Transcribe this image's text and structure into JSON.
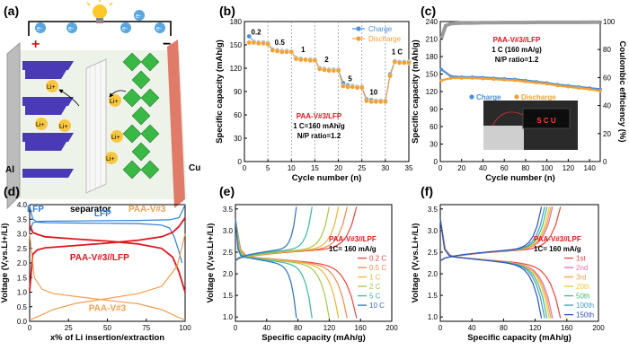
{
  "panel_labels": [
    "(a)",
    "(b)",
    "(c)",
    "(d)",
    "(e)",
    "(f)"
  ],
  "schematic": {
    "electrons": [
      "e-",
      "e-",
      "e-",
      "e-",
      "e-"
    ],
    "ions": [
      "Li+",
      "Li+",
      "Li+",
      "Li+",
      "Li+",
      "Li+"
    ],
    "plus_sign": "+",
    "minus_sign": "−",
    "cathode_label": "LFP",
    "separator_label": "separator",
    "anode_label": "PAA-V#3",
    "al_label": "Al",
    "cu_label": "Cu"
  },
  "colors": {
    "charge": "#4a90d9",
    "discharge": "#f5a033",
    "lfp_blue": "#2e7fd6",
    "full_red": "#e0151d",
    "anode_orange": "#f0a050",
    "cathode_purple": "#4a3ab5",
    "anode_green": "#3ab845",
    "cu_red": "#e07b6a",
    "ce_gray": "#9a9a9a"
  },
  "chart_data": [
    {
      "id": "b",
      "type": "scatter",
      "xlabel": "Cycle number (n)",
      "ylabel": "Specific capacity (mAh/g)",
      "xlim": [
        0,
        35
      ],
      "ylim": [
        0,
        180
      ],
      "xticks": [
        "0",
        "5",
        "10",
        "15",
        "20",
        "25",
        "30",
        "35"
      ],
      "yticks": [
        "0",
        "30",
        "60",
        "90",
        "120",
        "150",
        "180"
      ],
      "legend": [
        "Charge",
        "Discharge"
      ],
      "rate_labels": [
        {
          "text": "0.2",
          "x": 2.5,
          "y": 163
        },
        {
          "text": "0.5",
          "x": 7.5,
          "y": 150
        },
        {
          "text": "1",
          "x": 12.5,
          "y": 141
        },
        {
          "text": "2",
          "x": 17.5,
          "y": 128
        },
        {
          "text": "5",
          "x": 22.5,
          "y": 103
        },
        {
          "text": "10",
          "x": 27.5,
          "y": 86
        },
        {
          "text": "1 C",
          "x": 32.5,
          "y": 138
        }
      ],
      "vlines": [
        5,
        10,
        15,
        20,
        25,
        30
      ],
      "annotation": [
        "PAA-V#3/LFP",
        "1 C=160 mAh/g",
        "N/P ratio=1.2"
      ],
      "series": [
        {
          "name": "Charge",
          "x": [
            1,
            2,
            3,
            4,
            5,
            6,
            7,
            8,
            9,
            10,
            11,
            12,
            13,
            14,
            15,
            16,
            17,
            18,
            19,
            20,
            21,
            22,
            23,
            24,
            25,
            26,
            27,
            28,
            29,
            30,
            31,
            32,
            33,
            34,
            35
          ],
          "values": [
            161,
            154,
            153,
            153,
            152,
            144,
            143,
            142,
            142,
            141,
            133,
            132,
            131,
            131,
            131,
            120,
            119,
            118,
            118,
            118,
            101,
            98,
            97,
            96,
            96,
            80,
            79,
            78,
            78,
            78,
            112,
            129,
            128,
            128,
            128
          ]
        },
        {
          "name": "Discharge",
          "x": [
            1,
            2,
            3,
            4,
            5,
            6,
            7,
            8,
            9,
            10,
            11,
            12,
            13,
            14,
            15,
            16,
            17,
            18,
            19,
            20,
            21,
            22,
            23,
            24,
            25,
            26,
            27,
            28,
            29,
            30,
            31,
            32,
            33,
            34,
            35
          ],
          "values": [
            153,
            153,
            152,
            152,
            151,
            143,
            142,
            141,
            141,
            141,
            132,
            131,
            131,
            130,
            130,
            119,
            118,
            117,
            117,
            117,
            97,
            96,
            96,
            95,
            95,
            78,
            77,
            77,
            77,
            77,
            110,
            128,
            127,
            127,
            127
          ]
        }
      ]
    },
    {
      "id": "c",
      "type": "scatter",
      "xlabel": "Cycle number (n)",
      "ylabel": "Specific capacity (mAh/g)",
      "y2label": "Coulombic efficiency (%)",
      "xlim": [
        0,
        150
      ],
      "ylim": [
        0,
        240
      ],
      "y2lim": [
        0,
        100
      ],
      "xticks": [
        "0",
        "20",
        "40",
        "60",
        "80",
        "100",
        "120",
        "140"
      ],
      "yticks": [
        "0",
        "30",
        "60",
        "90",
        "120",
        "150",
        "180",
        "210",
        "240"
      ],
      "y2ticks": [
        "0",
        "20",
        "40",
        "60",
        "80",
        "100"
      ],
      "legend": [
        "Charge",
        "Discharge"
      ],
      "annotation": [
        "PAA-V#3//LFP",
        "1 C (160 mA/g)",
        "N/P ratio=1.2"
      ],
      "inset_text": "S C U",
      "series": [
        {
          "name": "Charge",
          "x": [
            1,
            10,
            20,
            30,
            40,
            50,
            60,
            70,
            80,
            90,
            100,
            110,
            120,
            130,
            140,
            150
          ],
          "values": [
            158,
            146,
            145,
            145,
            144,
            143,
            142,
            141,
            139,
            137,
            135,
            132,
            130,
            128,
            126,
            124
          ]
        },
        {
          "name": "Discharge",
          "x": [
            1,
            10,
            20,
            30,
            40,
            50,
            60,
            70,
            80,
            90,
            100,
            110,
            120,
            130,
            140,
            150
          ],
          "values": [
            139,
            143,
            143,
            143,
            142,
            141,
            140,
            139,
            137,
            135,
            133,
            130,
            128,
            126,
            124,
            121
          ]
        },
        {
          "name": "Coulombic efficiency",
          "x": [
            1,
            5,
            10,
            20,
            30,
            40,
            50,
            60,
            70,
            80,
            90,
            100,
            110,
            120,
            130,
            140,
            150
          ],
          "values": [
            88,
            97,
            98.5,
            99,
            99,
            99.2,
            99.2,
            99.3,
            99.3,
            99.3,
            99.4,
            99.4,
            99.4,
            99.4,
            99.4,
            99.5,
            99.5
          ]
        }
      ]
    },
    {
      "id": "d",
      "type": "line",
      "xlabel": "x% of Li insertion/extraction",
      "ylabel": "Voltage (V,vs.Li+/Li)",
      "xlim": [
        0,
        100
      ],
      "ylim": [
        0,
        4.0
      ],
      "xticks": [
        "0",
        "25",
        "50",
        "75",
        "100"
      ],
      "yticks": [
        "0.0",
        "0.5",
        "1.0",
        "1.5",
        "2.0",
        "2.5",
        "3.0",
        "3.5",
        "4.0"
      ],
      "labels": [
        "LFP",
        "PAA-V#3//LFP",
        "PAA-V#3"
      ],
      "series": [
        {
          "name": "LFP charge",
          "x": [
            0,
            2,
            5,
            10,
            30,
            50,
            70,
            90,
            96,
            98,
            100
          ],
          "values": [
            3.05,
            3.38,
            3.42,
            3.43,
            3.44,
            3.45,
            3.46,
            3.48,
            3.55,
            3.75,
            4.0
          ]
        },
        {
          "name": "LFP discharge",
          "x": [
            0,
            2,
            5,
            10,
            30,
            50,
            70,
            85,
            90,
            93,
            96,
            98
          ],
          "values": [
            3.95,
            3.5,
            3.4,
            3.38,
            3.37,
            3.36,
            3.35,
            3.3,
            3.2,
            2.9,
            2.4,
            2.0
          ]
        },
        {
          "name": "Full charge",
          "x": [
            0,
            2,
            5,
            10,
            30,
            50,
            70,
            85,
            92,
            96,
            100
          ],
          "values": [
            1.05,
            2.3,
            2.45,
            2.52,
            2.6,
            2.68,
            2.78,
            2.9,
            3.05,
            3.25,
            3.55
          ]
        },
        {
          "name": "Full discharge",
          "x": [
            0,
            2,
            5,
            10,
            30,
            50,
            70,
            85,
            92,
            96,
            100
          ],
          "values": [
            3.3,
            3.05,
            2.98,
            2.9,
            2.82,
            2.75,
            2.65,
            2.5,
            2.2,
            1.7,
            1.0
          ]
        },
        {
          "name": "Anode lithiation",
          "x": [
            0,
            3,
            8,
            15,
            30,
            50,
            70,
            85,
            95,
            100
          ],
          "values": [
            3.0,
            1.5,
            1.1,
            0.95,
            0.85,
            0.72,
            0.6,
            0.4,
            0.15,
            0.05
          ]
        },
        {
          "name": "Anode delithiation",
          "x": [
            0,
            5,
            15,
            30,
            50,
            70,
            85,
            95,
            100
          ],
          "values": [
            0.05,
            0.15,
            0.4,
            0.62,
            0.78,
            0.95,
            1.2,
            1.9,
            3.0
          ]
        }
      ]
    },
    {
      "id": "e",
      "type": "line",
      "xlabel": "Specific capacity (mAh/g)",
      "ylabel": "Voltage (V,vs.Li+/Li)",
      "xlim": [
        0,
        200
      ],
      "ylim": [
        0.9,
        3.6
      ],
      "xticks": [
        "0",
        "40",
        "80",
        "120",
        "160",
        "200"
      ],
      "yticks": [
        "1.0",
        "1.5",
        "2.0",
        "2.5",
        "3.0",
        "3.5"
      ],
      "annotation": [
        "PAA-V#3//LPF",
        "1C= 160 mA/g"
      ],
      "legend": [
        "0.2 C",
        "0.5 C",
        "1 C",
        "2 C",
        "5 C",
        "10 C"
      ],
      "legend_colors": [
        "#e8453c",
        "#f28a52",
        "#f0b43c",
        "#a8c84a",
        "#3cb8a0",
        "#2f6fbf"
      ],
      "capacities": [
        155,
        143,
        132,
        120,
        98,
        78
      ]
    },
    {
      "id": "f",
      "type": "line",
      "xlabel": "Specific capacity (mAh/g)",
      "ylabel": "Voltage (V,vs.Li+/Li)",
      "xlim": [
        0,
        200
      ],
      "ylim": [
        0.9,
        3.6
      ],
      "xticks": [
        "0",
        "40",
        "80",
        "120",
        "160",
        "200"
      ],
      "yticks": [
        "1.0",
        "1.5",
        "2.0",
        "2.5",
        "3.0",
        "3.5"
      ],
      "annotation": [
        "PAA-V#3//LPF",
        "1C= 160 mA/g"
      ],
      "legend": [
        "1st",
        "2nd",
        "3rd",
        "20th",
        "50th",
        "100th",
        "150th"
      ],
      "legend_colors": [
        "#e8453c",
        "#e070b0",
        "#f0a050",
        "#f0c83c",
        "#46b87a",
        "#3c9cc8",
        "#2f4fbf"
      ],
      "capacities": [
        152,
        142,
        140,
        138,
        135,
        132,
        128
      ]
    }
  ]
}
